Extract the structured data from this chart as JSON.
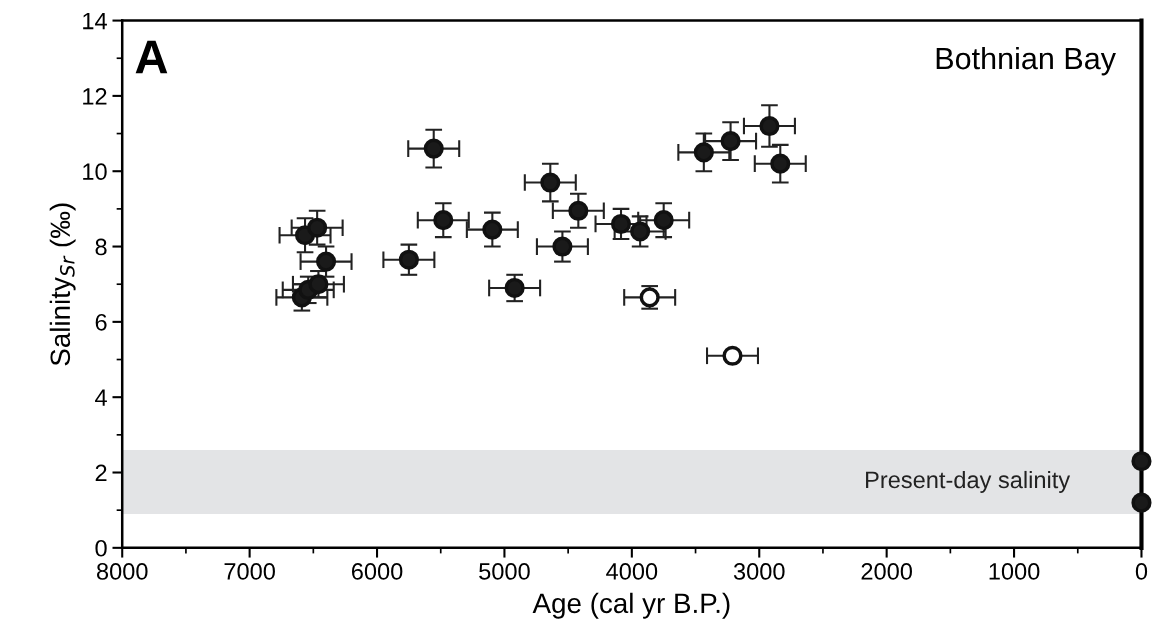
{
  "chart_data": {
    "type": "scatter",
    "xlabel": "Age (cal yr B.P.)",
    "ylabel": "Salinity$_{Sr}$ (‰)",
    "annotations": [
      "A",
      "Bothnian Bay"
    ],
    "xlim": [
      8000,
      0
    ],
    "xticks": [
      8000,
      7000,
      6000,
      5000,
      4000,
      3000,
      2000,
      1000,
      0
    ],
    "ylim": [
      0,
      14
    ],
    "yticks": [
      0,
      2,
      4,
      6,
      8,
      10,
      12,
      14
    ],
    "marker": "circle",
    "grid": false,
    "legend": false,
    "bands": [
      {
        "axis": "y",
        "from": 0.9,
        "to": 2.6,
        "label": "Present-day salinity",
        "color": "#e3e4e6"
      }
    ],
    "series": [
      {
        "color": "#1a1a1a",
        "x": [
          6590,
          6540,
          6460,
          6565,
          6470,
          6400,
          5750,
          5555,
          5480,
          5095,
          4920,
          4640,
          4545,
          4420,
          4085,
          3935,
          3750,
          3435,
          3225,
          2920,
          2835
        ],
        "values": [
          6.65,
          6.85,
          7.0,
          8.3,
          8.5,
          7.6,
          7.65,
          10.6,
          8.7,
          8.45,
          6.9,
          9.7,
          8.0,
          8.95,
          8.6,
          8.4,
          8.7,
          10.5,
          10.8,
          11.2,
          10.2
        ],
        "errors": [
          0.35,
          0.35,
          0.35,
          0.45,
          0.45,
          0.4,
          0.4,
          0.5,
          0.45,
          0.45,
          0.35,
          0.5,
          0.4,
          0.45,
          0.4,
          0.4,
          0.45,
          0.5,
          0.5,
          0.55,
          0.5
        ],
        "xerrors": [
          200,
          200,
          200,
          200,
          200,
          200,
          200,
          200,
          200,
          200,
          200,
          200,
          200,
          200,
          200,
          200,
          200,
          200,
          200,
          200,
          200
        ]
      },
      {
        "color": "#ffffff",
        "x": [
          3860,
          3210
        ],
        "values": [
          6.65,
          5.1
        ],
        "errors": [
          0.3,
          null
        ],
        "xerrors": [
          200,
          200
        ]
      },
      {
        "color": "#1a1a1a",
        "x": [
          0,
          0
        ],
        "values": [
          2.3,
          1.2
        ]
      }
    ]
  }
}
